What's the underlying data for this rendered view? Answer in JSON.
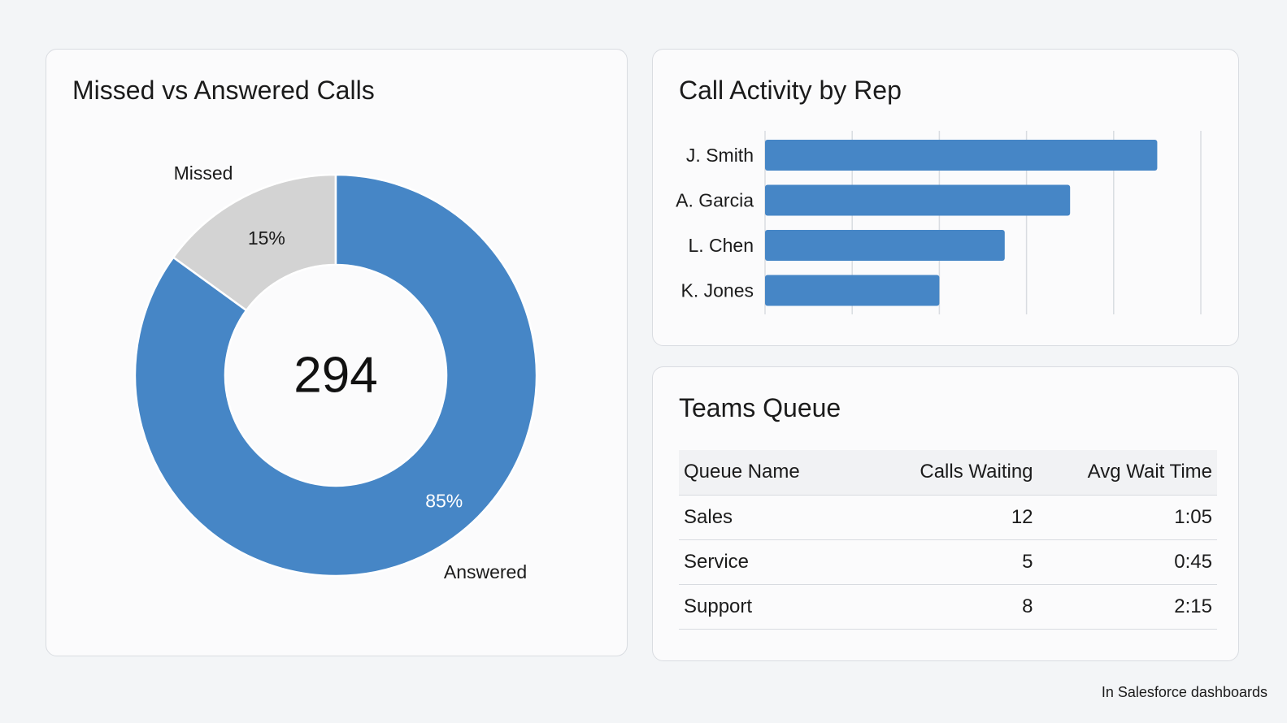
{
  "donut_card": {
    "title": "Missed vs Answered Calls"
  },
  "bars_card": {
    "title": "Call Activity by Rep"
  },
  "queue_card": {
    "title": "Teams Queue",
    "columns": [
      "Queue Name",
      "Calls Waiting",
      "Avg Wait Time"
    ],
    "rows": [
      {
        "name": "Sales",
        "waiting": "12",
        "avg_wait": "1:05"
      },
      {
        "name": "Service",
        "waiting": "5",
        "avg_wait": "0:45"
      },
      {
        "name": "Support",
        "waiting": "8",
        "avg_wait": "2:15"
      }
    ]
  },
  "footer_note": "In Salesforce dashboards",
  "colors": {
    "answered": "#4686c6",
    "missed": "#d3d3d3",
    "bar": "#4686c6",
    "grid": "#d9dce1"
  },
  "chart_data": [
    {
      "type": "pie",
      "title": "Missed vs Answered Calls",
      "center_label": "294",
      "categories": [
        "Missed",
        "Answered"
      ],
      "values": [
        15,
        85
      ],
      "value_labels": [
        "15%",
        "85%"
      ]
    },
    {
      "type": "bar",
      "orientation": "horizontal",
      "title": "Call Activity by Rep",
      "categories": [
        "J. Smith",
        "A. Garcia",
        "L. Chen",
        "K. Jones"
      ],
      "values": [
        4.5,
        3.5,
        2.75,
        2.0
      ],
      "xlim": [
        0,
        5
      ],
      "grid": true
    }
  ]
}
